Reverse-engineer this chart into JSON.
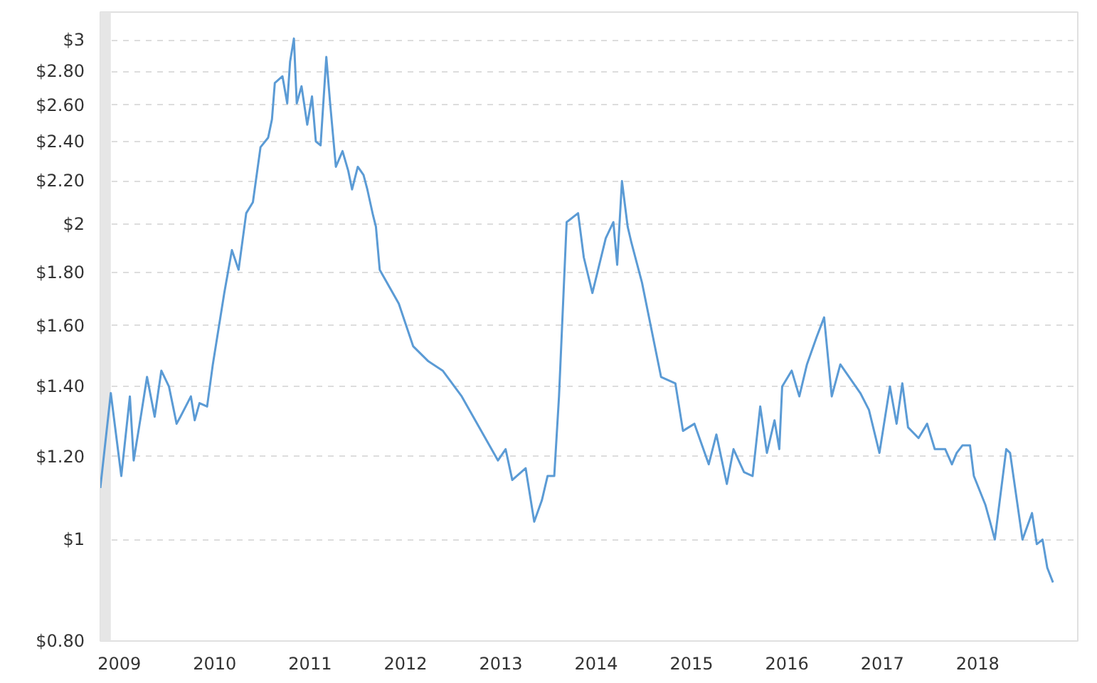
{
  "chart_data": {
    "type": "line",
    "log": "y",
    "grid": "y",
    "xlim": [
      2008.8,
      2019.05
    ],
    "ylim": [
      0.8,
      3.19
    ],
    "xticks": [
      2009,
      2010,
      2011,
      2012,
      2013,
      2014,
      2015,
      2016,
      2017,
      2018
    ],
    "yticks": [
      {
        "value": 0.8,
        "label": "$0.80"
      },
      {
        "value": 1,
        "label": "$1"
      },
      {
        "value": 1.2,
        "label": "$1.20"
      },
      {
        "value": 1.4,
        "label": "$1.40"
      },
      {
        "value": 1.6,
        "label": "$1.60"
      },
      {
        "value": 1.8,
        "label": "$1.80"
      },
      {
        "value": 2,
        "label": "$2"
      },
      {
        "value": 2.2,
        "label": "$2.20"
      },
      {
        "value": 2.4,
        "label": "$2.40"
      },
      {
        "value": 2.6,
        "label": "$2.60"
      },
      {
        "value": 2.8,
        "label": "$2.80"
      },
      {
        "value": 3,
        "label": "$3"
      }
    ],
    "bands": [
      {
        "axis": "x",
        "from": 2008.8,
        "to": 2008.91,
        "color": "#e6e6e6"
      }
    ],
    "series": [
      {
        "color": "#5b9bd5",
        "x": [
          2008.8,
          2008.91,
          2009.02,
          2009.11,
          2009.15,
          2009.23,
          2009.29,
          2009.37,
          2009.44,
          2009.52,
          2009.6,
          2009.64,
          2009.75,
          2009.79,
          2009.84,
          2009.92,
          2009.98,
          2010.1,
          2010.18,
          2010.25,
          2010.33,
          2010.4,
          2010.48,
          2010.56,
          2010.6,
          2010.63,
          2010.71,
          2010.76,
          2010.79,
          2010.83,
          2010.86,
          2010.91,
          2010.97,
          2011.02,
          2011.06,
          2011.11,
          2011.17,
          2011.21,
          2011.27,
          2011.34,
          2011.4,
          2011.44,
          2011.5,
          2011.56,
          2011.6,
          2011.66,
          2011.69,
          2011.73,
          2011.93,
          2012.08,
          2012.24,
          2012.39,
          2012.59,
          2012.97,
          2013.05,
          2013.12,
          2013.26,
          2013.35,
          2013.43,
          2013.49,
          2013.56,
          2013.61,
          2013.69,
          2013.81,
          2013.87,
          2013.96,
          2014.1,
          2014.18,
          2014.22,
          2014.27,
          2014.33,
          2014.37,
          2014.48,
          2014.68,
          2014.83,
          2014.91,
          2015.03,
          2015.18,
          2015.26,
          2015.37,
          2015.44,
          2015.55,
          2015.64,
          2015.72,
          2015.79,
          2015.87,
          2015.92,
          2015.95,
          2016.05,
          2016.13,
          2016.21,
          2016.31,
          2016.39,
          2016.47,
          2016.56,
          2016.77,
          2016.86,
          2016.97,
          2017.08,
          2017.15,
          2017.21,
          2017.27,
          2017.38,
          2017.47,
          2017.55,
          2017.66,
          2017.73,
          2017.78,
          2017.84,
          2017.92,
          2017.96,
          2018.08,
          2018.13,
          2018.18,
          2018.3,
          2018.34,
          2018.47,
          2018.57,
          2018.62,
          2018.68,
          2018.73,
          2018.79
        ],
        "values": [
          1.12,
          1.38,
          1.15,
          1.37,
          1.19,
          1.32,
          1.43,
          1.31,
          1.45,
          1.4,
          1.29,
          1.31,
          1.37,
          1.3,
          1.35,
          1.34,
          1.47,
          1.72,
          1.89,
          1.81,
          2.05,
          2.1,
          2.37,
          2.42,
          2.52,
          2.73,
          2.77,
          2.61,
          2.86,
          3.01,
          2.61,
          2.71,
          2.49,
          2.65,
          2.4,
          2.38,
          2.89,
          2.61,
          2.27,
          2.35,
          2.25,
          2.16,
          2.27,
          2.23,
          2.16,
          2.04,
          1.99,
          1.81,
          1.68,
          1.53,
          1.48,
          1.45,
          1.37,
          1.19,
          1.22,
          1.14,
          1.17,
          1.04,
          1.09,
          1.15,
          1.15,
          1.37,
          2.01,
          2.05,
          1.86,
          1.72,
          1.94,
          2.01,
          1.83,
          2.2,
          1.99,
          1.92,
          1.76,
          1.43,
          1.41,
          1.27,
          1.29,
          1.18,
          1.26,
          1.13,
          1.22,
          1.16,
          1.15,
          1.34,
          1.21,
          1.3,
          1.22,
          1.4,
          1.45,
          1.37,
          1.47,
          1.56,
          1.63,
          1.37,
          1.47,
          1.38,
          1.33,
          1.21,
          1.4,
          1.29,
          1.41,
          1.28,
          1.25,
          1.29,
          1.22,
          1.22,
          1.18,
          1.21,
          1.23,
          1.23,
          1.15,
          1.08,
          1.04,
          1.0,
          1.22,
          1.21,
          1.0,
          1.06,
          0.99,
          1.0,
          0.94,
          0.91
        ]
      }
    ]
  }
}
